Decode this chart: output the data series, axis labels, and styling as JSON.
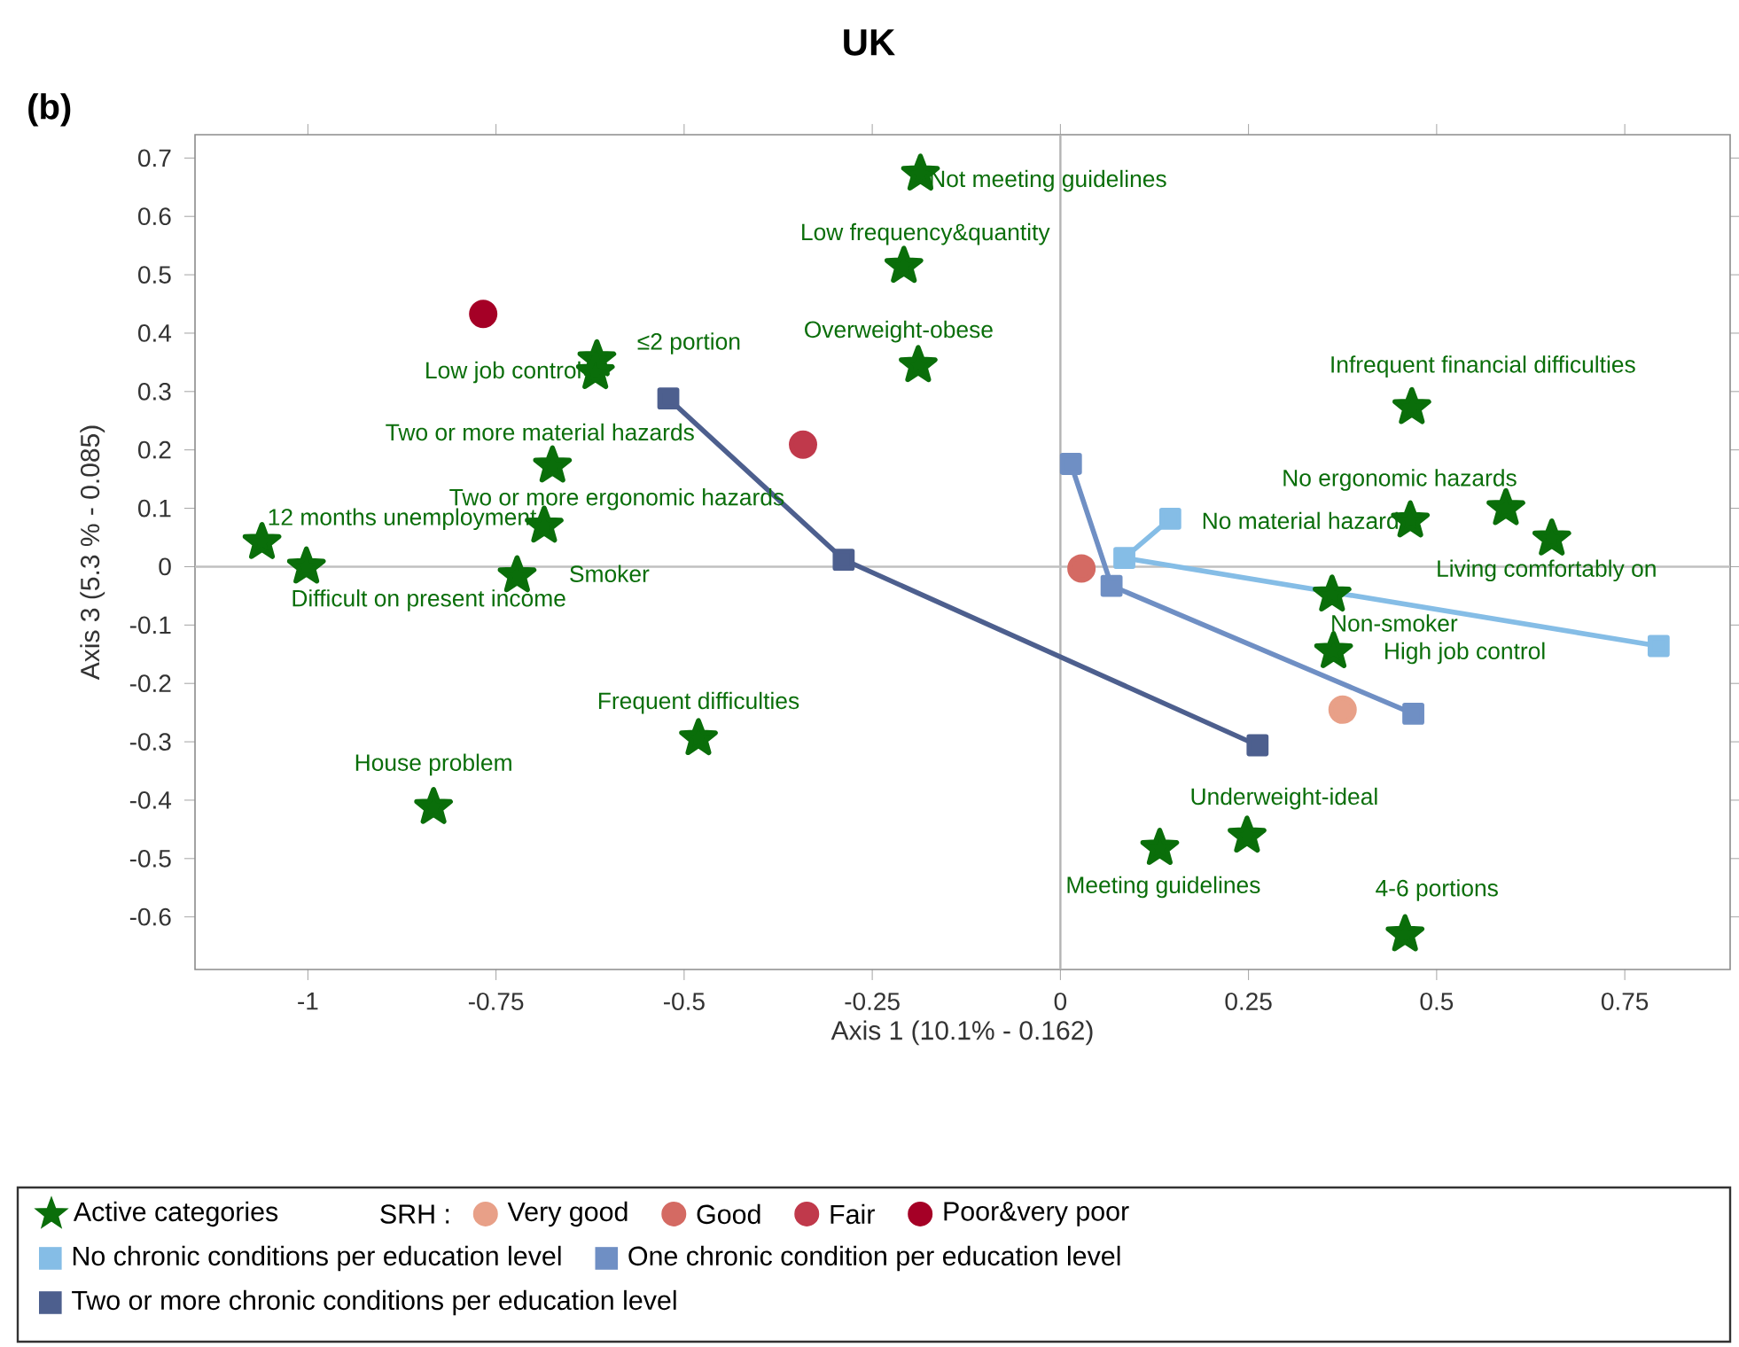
{
  "chart_data": {
    "type": "scatter",
    "title": "UK",
    "xlabel": "Axis 1 (10.1% - 0.162)",
    "ylabel": "Axis 3 (5.3 % - 0.085)",
    "legend_title": "SRH :",
    "legend": "bottom",
    "xlim": [
      -1.15,
      0.89
    ],
    "ylim": [
      -0.69,
      0.74
    ],
    "xticks": [
      {
        "value": -1,
        "label": "-1"
      },
      {
        "value": -0.75,
        "label": "-0.75"
      },
      {
        "value": -0.5,
        "label": "-0.5"
      },
      {
        "value": -0.25,
        "label": "-0.25"
      },
      {
        "value": 0,
        "label": "0"
      },
      {
        "value": 0.25,
        "label": "0.25"
      },
      {
        "value": 0.5,
        "label": "0.5"
      },
      {
        "value": 0.75,
        "label": "0.75"
      }
    ],
    "yticks": [
      {
        "value": -0.6,
        "label": "-0.6"
      },
      {
        "value": -0.5,
        "label": "-0.5"
      },
      {
        "value": -0.4,
        "label": "-0.4"
      },
      {
        "value": -0.3,
        "label": "-0.3"
      },
      {
        "value": -0.2,
        "label": "-0.2"
      },
      {
        "value": -0.1,
        "label": "-0.1"
      },
      {
        "value": 0,
        "label": "0"
      },
      {
        "value": 0.1,
        "label": "0.1"
      },
      {
        "value": 0.2,
        "label": "0.2"
      },
      {
        "value": 0.3,
        "label": "0.3"
      },
      {
        "value": 0.4,
        "label": "0.4"
      },
      {
        "value": 0.5,
        "label": "0.5"
      },
      {
        "value": 0.6,
        "label": "0.6"
      },
      {
        "value": 0.7,
        "label": "0.7"
      }
    ],
    "ref_lines": [
      {
        "axis": "x",
        "value": 0,
        "color": "#b4b4b4"
      },
      {
        "axis": "y",
        "value": 0,
        "color": "#c0c0c0"
      }
    ],
    "series": [
      {
        "name": "Active categories",
        "marker": "star",
        "color": "#0a6e0a",
        "x": [
          -0.186,
          -0.208,
          -0.189,
          -0.616,
          -0.618,
          -0.675,
          -0.686,
          -1.061,
          -1.002,
          -0.722,
          -0.481,
          -0.833,
          0.467,
          0.592,
          0.465,
          0.653,
          0.361,
          0.363,
          0.248,
          0.132,
          0.458
        ],
        "values": [
          0.673,
          0.515,
          0.345,
          0.355,
          0.333,
          0.173,
          0.07,
          0.042,
          0.0,
          -0.015,
          -0.294,
          -0.412,
          0.273,
          0.1,
          0.079,
          0.048,
          -0.048,
          -0.145,
          -0.461,
          -0.482,
          -0.63
        ]
      },
      {
        "name": "Very good",
        "marker": "circle",
        "color": "#e8a088",
        "x": [
          0.375
        ],
        "values": [
          -0.245
        ]
      },
      {
        "name": "Good",
        "marker": "circle",
        "color": "#d46a63",
        "x": [
          0.028
        ],
        "values": [
          -0.003
        ]
      },
      {
        "name": "Fair",
        "marker": "circle",
        "color": "#c0394b",
        "x": [
          -0.342
        ],
        "values": [
          0.209
        ]
      },
      {
        "name": "Poor&very poor",
        "marker": "circle",
        "color": "#a50026",
        "x": [
          -0.767
        ],
        "values": [
          0.433
        ]
      },
      {
        "name": "No chronic conditions per education level",
        "type": "line",
        "marker": "square",
        "color": "#85bde6",
        "x": [
          0.795,
          0.085,
          0.146
        ],
        "values": [
          -0.136,
          0.015,
          0.082
        ]
      },
      {
        "name": "One chronic condition per education level",
        "type": "line",
        "marker": "square",
        "color": "#6f8fc4",
        "x": [
          0.469,
          0.068,
          0.014
        ],
        "values": [
          -0.252,
          -0.033,
          0.176
        ]
      },
      {
        "name": "Two or more chronic conditions per education level",
        "type": "line",
        "marker": "square",
        "color": "#4d5f8e",
        "x": [
          0.262,
          -0.288,
          -0.521
        ],
        "values": [
          -0.306,
          0.012,
          0.288
        ]
      }
    ],
    "annotations": [
      "(b)",
      {
        "text": "Not meeting guidelines",
        "x": -0.186,
        "y": 0.673
      },
      {
        "text": "Low frequency&quantity",
        "x": -0.208,
        "y": 0.515
      },
      {
        "text": "Overweight-obese",
        "x": -0.189,
        "y": 0.345
      },
      {
        "text": "≤2 portion",
        "x": -0.616,
        "y": 0.355
      },
      {
        "text": "Low job control",
        "x": -0.618,
        "y": 0.333
      },
      {
        "text": "Two or more material hazards",
        "x": -0.675,
        "y": 0.173
      },
      {
        "text": "Two or more ergonomic hazards",
        "x": -0.686,
        "y": 0.07
      },
      {
        "text": "12 months unemployment",
        "x": -1.061,
        "y": 0.042
      },
      {
        "text": "Difficult on present income",
        "x": -1.002,
        "y": 0.0
      },
      {
        "text": "Smoker",
        "x": -0.722,
        "y": -0.015
      },
      {
        "text": "Frequent difficulties",
        "x": -0.481,
        "y": -0.294
      },
      {
        "text": "House problem",
        "x": -0.833,
        "y": -0.412
      },
      {
        "text": "Infrequent financial difficulties",
        "x": 0.467,
        "y": 0.273
      },
      {
        "text": "No ergonomic hazards",
        "x": 0.592,
        "y": 0.1
      },
      {
        "text": "No material hazard",
        "x": 0.465,
        "y": 0.079
      },
      {
        "text": "Living comfortably on",
        "x": 0.653,
        "y": 0.048
      },
      {
        "text": "Non-smoker",
        "x": 0.361,
        "y": -0.048
      },
      {
        "text": "High job control",
        "x": 0.363,
        "y": -0.145
      },
      {
        "text": "Underweight-ideal",
        "x": 0.248,
        "y": -0.461
      },
      {
        "text": "Meeting guidelines",
        "x": 0.132,
        "y": -0.482
      },
      {
        "text": "4-6 portions",
        "x": 0.458,
        "y": -0.63
      }
    ]
  }
}
